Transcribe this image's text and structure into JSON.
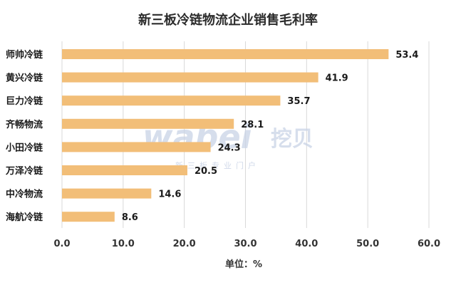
{
  "chart_data": {
    "type": "bar",
    "orientation": "horizontal",
    "title": "新三板冷链物流企业销售毛利率",
    "categories": [
      "师帅冷链",
      "黄兴冷链",
      "巨力冷链",
      "齐畅物流",
      "小田冷链",
      "万泽冷链",
      "中冷物流",
      "海航冷链"
    ],
    "values": [
      53.4,
      41.9,
      35.7,
      28.1,
      24.3,
      20.5,
      14.6,
      8.6
    ],
    "value_labels": [
      "53.4",
      "41.9",
      "35.7",
      "28.1",
      "24.3",
      "20.5",
      "14.6",
      "8.6"
    ],
    "xlim": [
      0,
      60
    ],
    "xticks": [
      0,
      10,
      20,
      30,
      40,
      50,
      60
    ],
    "xtick_labels": [
      "0.0",
      "10.0",
      "20.0",
      "30.0",
      "40.0",
      "50.0",
      "60.0"
    ],
    "xlabel": "单位：%",
    "grid": "vertical",
    "bar_color": "#F2BE78",
    "grid_color": "#D9D9D9"
  },
  "watermark": {
    "main": "wabei",
    "cn": "挖贝",
    "sub": "新三板专业门户",
    "color": "#C9D3E6"
  }
}
